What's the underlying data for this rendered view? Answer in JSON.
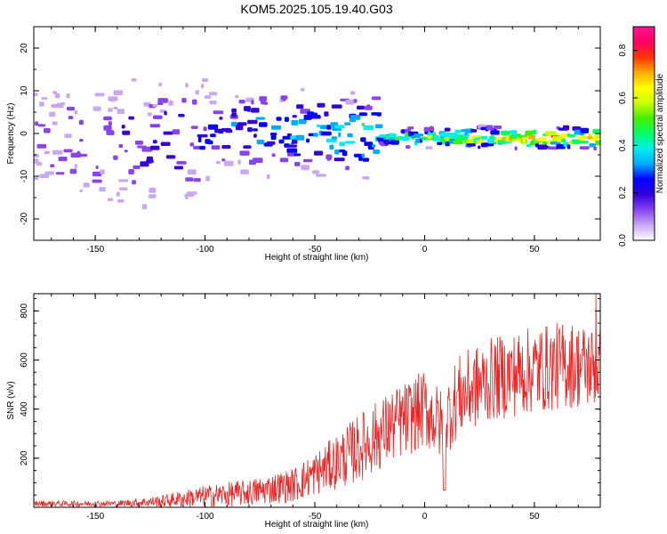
{
  "title": "KOM5.2025.105.19.40.G03",
  "colors": {
    "snr_line": "#ee2222",
    "colormap": [
      "#ffffff",
      "#c9a8f5",
      "#8844ee",
      "#3300dd",
      "#0000ff",
      "#00aaff",
      "#00eeee",
      "#00ff66",
      "#44ee00",
      "#ccff00",
      "#ffff00",
      "#ffaa00",
      "#ff3300",
      "#ff0066",
      "#ff1493"
    ]
  },
  "chart_data": [
    {
      "type": "heatmap",
      "xlabel": "Height of straight line (km)",
      "ylabel": "Frequency (Hz)",
      "xlim": [
        -178,
        80
      ],
      "ylim": [
        -25,
        25
      ],
      "xticks": [
        -150,
        -100,
        -50,
        0,
        50
      ],
      "yticks": [
        -20,
        -10,
        0,
        10,
        20
      ],
      "description_band": {
        "center_frequency_hz": [
          {
            "x": -170,
            "f": -3
          },
          {
            "x": -120,
            "f": -2
          },
          {
            "x": -80,
            "f": 1
          },
          {
            "x": -40,
            "f": 0
          },
          {
            "x": -10,
            "f": -1
          },
          {
            "x": 20,
            "f": -1
          },
          {
            "x": 50,
            "f": -1
          },
          {
            "x": 80,
            "f": -1
          }
        ],
        "peak_amplitude": [
          {
            "x": -170,
            "a": 0.15
          },
          {
            "x": -120,
            "a": 0.22
          },
          {
            "x": -80,
            "a": 0.32
          },
          {
            "x": -40,
            "a": 0.38
          },
          {
            "x": -10,
            "a": 0.48
          },
          {
            "x": 20,
            "a": 0.6
          },
          {
            "x": 50,
            "a": 0.75
          },
          {
            "x": 80,
            "a": 0.7
          }
        ]
      },
      "colorbar": {
        "label": "Normalized spectral amplitude",
        "range": [
          0,
          0.9
        ],
        "ticks": [
          0.0,
          0.2,
          0.4,
          0.6,
          0.8
        ]
      }
    },
    {
      "type": "line",
      "xlabel": "Height of straight line (km)",
      "ylabel": "SNR (v/v)",
      "xlim": [
        -178,
        80
      ],
      "ylim": [
        0,
        870
      ],
      "xticks": [
        -150,
        -100,
        -50,
        0,
        50
      ],
      "yticks": [
        200,
        400,
        600,
        800
      ],
      "series": [
        {
          "envelope": [
            {
              "x": -178,
              "mean": 15,
              "amp": 12
            },
            {
              "x": -140,
              "mean": 15,
              "amp": 12
            },
            {
              "x": -120,
              "mean": 25,
              "amp": 25
            },
            {
              "x": -100,
              "mean": 45,
              "amp": 45
            },
            {
              "x": -80,
              "mean": 60,
              "amp": 55
            },
            {
              "x": -60,
              "mean": 90,
              "amp": 70
            },
            {
              "x": -45,
              "mean": 160,
              "amp": 100
            },
            {
              "x": -30,
              "mean": 240,
              "amp": 140
            },
            {
              "x": -15,
              "mean": 330,
              "amp": 150
            },
            {
              "x": 0,
              "mean": 400,
              "amp": 160
            },
            {
              "x": 8,
              "mean": 330,
              "amp": 150
            },
            {
              "x": 15,
              "mean": 450,
              "amp": 170
            },
            {
              "x": 30,
              "mean": 520,
              "amp": 170
            },
            {
              "x": 50,
              "mean": 560,
              "amp": 180
            },
            {
              "x": 65,
              "mean": 580,
              "amp": 180
            },
            {
              "x": 80,
              "mean": 570,
              "amp": 170
            }
          ],
          "dip": {
            "x": 9,
            "value": 70
          },
          "max": {
            "x": 78,
            "value": 870
          }
        }
      ]
    }
  ]
}
